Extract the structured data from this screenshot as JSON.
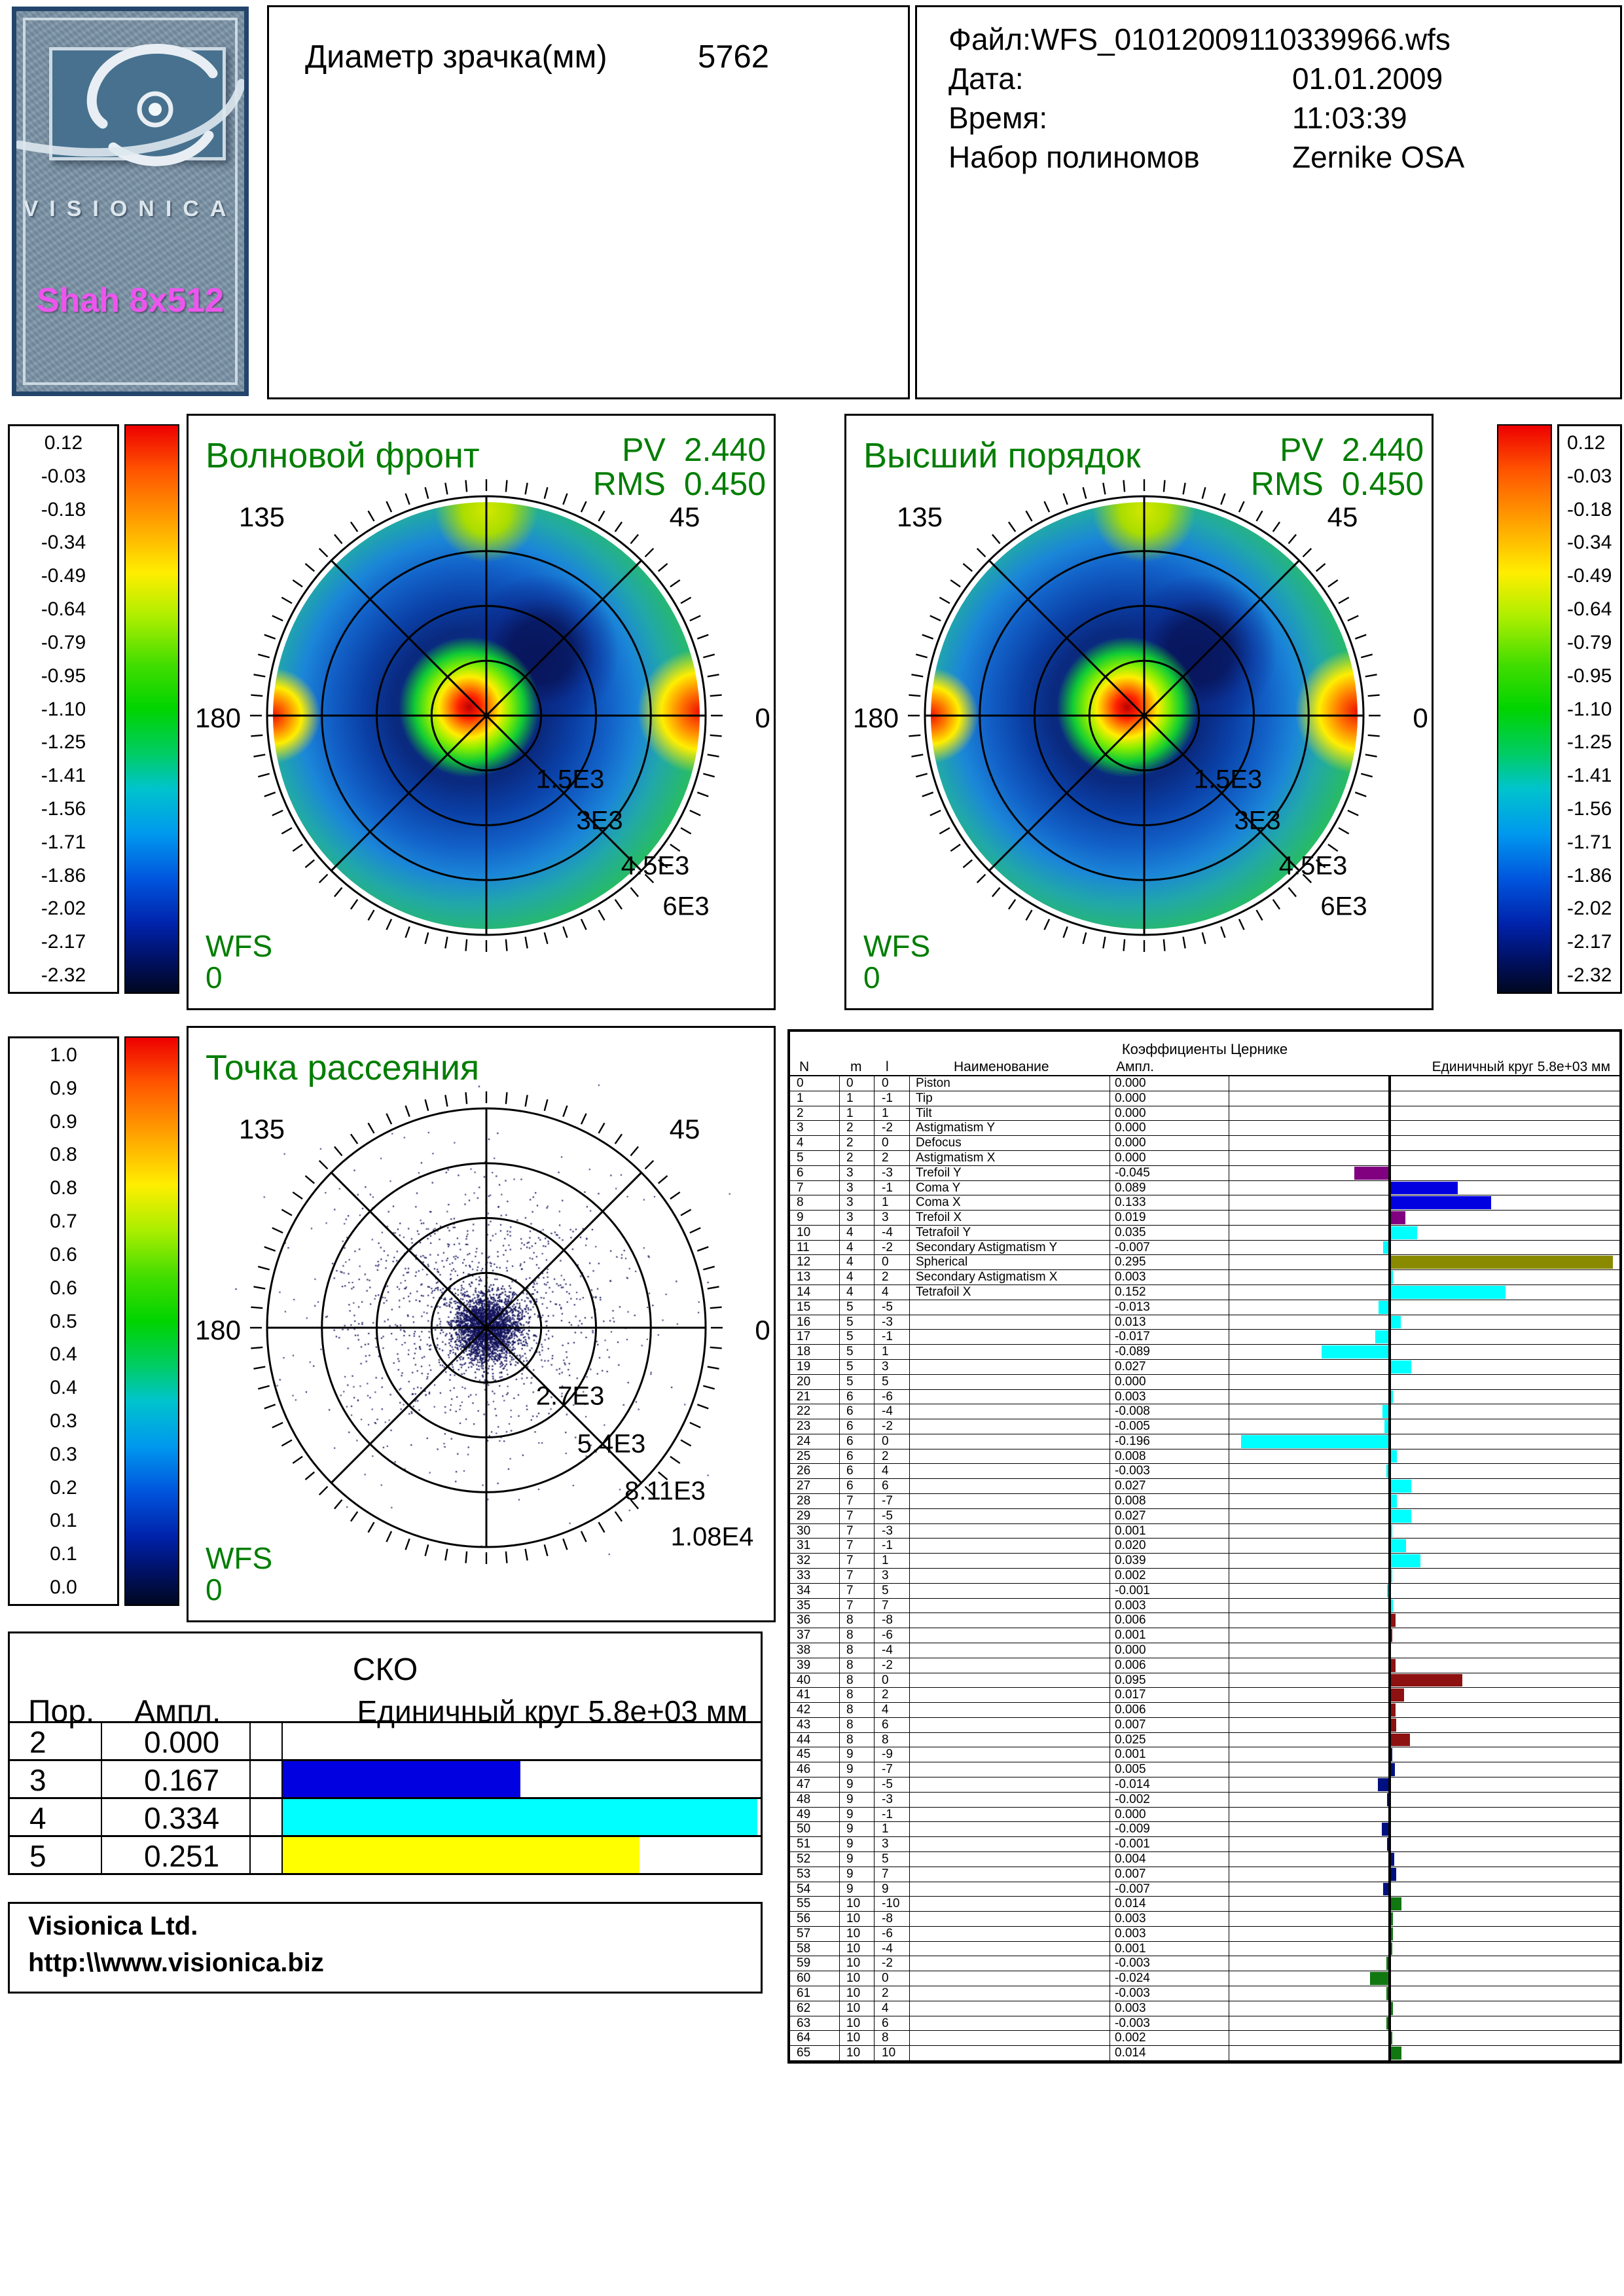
{
  "logo": {
    "brand": "VISIONICA",
    "model": "Shah 8x512",
    "bg": "#7b93a6",
    "panel": "#47718f",
    "model_color": "#ee55ee"
  },
  "pupil": {
    "label": "Диаметр зрачка(мм)",
    "value": "5762"
  },
  "file_info": {
    "lines": [
      {
        "label": "Файл:",
        "value": "WFS_01012009110339966.wfs"
      },
      {
        "label": "Дата:",
        "value": "01.01.2009"
      },
      {
        "label": "Время:",
        "value": "11:03:39"
      },
      {
        "label": "Набор полиномов",
        "value": "Zernike OSA"
      }
    ]
  },
  "colors": {
    "accent_green": "#007d00",
    "scale_top": "#ee0000",
    "scale_bottom": "#000820"
  },
  "wavefront": {
    "title": "Волновой фронт",
    "pv_label": "PV",
    "pv_value": "2.440",
    "rms_label": "RMS",
    "rms_value": "0.450",
    "wfs_label": "WFS",
    "wfs_value": "0",
    "angle_labels": [
      "135",
      "45",
      "180",
      "0"
    ],
    "ring_labels": [
      "1.5E3",
      "3E3",
      "4.5E3",
      "6E3"
    ],
    "scale_ticks": [
      "0.12",
      "-0.03",
      "-0.18",
      "-0.34",
      "-0.49",
      "-0.64",
      "-0.79",
      "-0.95",
      "-1.10",
      "-1.25",
      "-1.41",
      "-1.56",
      "-1.71",
      "-1.86",
      "-2.02",
      "-2.17",
      "-2.32"
    ]
  },
  "higher_order": {
    "title": "Высший порядок",
    "pv_label": "PV",
    "pv_value": "2.440",
    "rms_label": "RMS",
    "rms_value": "0.450",
    "wfs_label": "WFS",
    "wfs_value": "0",
    "angle_labels": [
      "135",
      "45",
      "180",
      "0"
    ],
    "ring_labels": [
      "1.5E3",
      "3E3",
      "4.5E3",
      "6E3"
    ],
    "scale_ticks": [
      "0.12",
      "-0.03",
      "-0.18",
      "-0.34",
      "-0.49",
      "-0.64",
      "-0.79",
      "-0.95",
      "-1.10",
      "-1.25",
      "-1.41",
      "-1.56",
      "-1.71",
      "-1.86",
      "-2.02",
      "-2.17",
      "-2.32"
    ]
  },
  "scatter": {
    "title": "Точка рассеяния",
    "wfs_label": "WFS",
    "wfs_value": "0",
    "angle_labels": [
      "135",
      "45",
      "180",
      "0"
    ],
    "ring_labels": [
      "2.7E3",
      "5.4E3",
      "8.11E3",
      "1.08E4"
    ],
    "scale_ticks": [
      "1.0",
      "0.9",
      "0.9",
      "0.8",
      "0.8",
      "0.7",
      "0.6",
      "0.6",
      "0.5",
      "0.4",
      "0.4",
      "0.3",
      "0.3",
      "0.2",
      "0.1",
      "0.1",
      "0.0"
    ]
  },
  "zernike": {
    "title": "Коэффициенты Цернике",
    "columns": [
      "N",
      "m",
      "l",
      "Наименование",
      "Ампл."
    ],
    "unit_label": "Единичный круг 5.8e+03 мм",
    "rows": [
      {
        "n": 0,
        "m": 0,
        "l": 0,
        "name": "Piston",
        "amp": "0.000",
        "color": ""
      },
      {
        "n": 1,
        "m": 1,
        "l": -1,
        "name": "Tip",
        "amp": "0.000",
        "color": ""
      },
      {
        "n": 2,
        "m": 1,
        "l": 1,
        "name": "Tilt",
        "amp": "0.000",
        "color": ""
      },
      {
        "n": 3,
        "m": 2,
        "l": -2,
        "name": "Astigmatism Y",
        "amp": "0.000",
        "color": ""
      },
      {
        "n": 4,
        "m": 2,
        "l": 0,
        "name": "Defocus",
        "amp": "0.000",
        "color": ""
      },
      {
        "n": 5,
        "m": 2,
        "l": 2,
        "name": "Astigmatism X",
        "amp": "0.000",
        "color": ""
      },
      {
        "n": 6,
        "m": 3,
        "l": -3,
        "name": "Trefoil Y",
        "amp": "-0.045",
        "color": "#800080"
      },
      {
        "n": 7,
        "m": 3,
        "l": -1,
        "name": "Coma Y",
        "amp": "0.089",
        "color": "#0000e0"
      },
      {
        "n": 8,
        "m": 3,
        "l": 1,
        "name": "Coma X",
        "amp": "0.133",
        "color": "#0000e0"
      },
      {
        "n": 9,
        "m": 3,
        "l": 3,
        "name": "Trefoil X",
        "amp": "0.019",
        "color": "#800080"
      },
      {
        "n": 10,
        "m": 4,
        "l": -4,
        "name": "Tetrafoil Y",
        "amp": "0.035",
        "color": "#00ffff"
      },
      {
        "n": 11,
        "m": 4,
        "l": -2,
        "name": "Secondary Astigmatism Y",
        "amp": "-0.007",
        "color": "#00ffff"
      },
      {
        "n": 12,
        "m": 4,
        "l": 0,
        "name": "Spherical",
        "amp": "0.295",
        "color": "#8a8a00"
      },
      {
        "n": 13,
        "m": 4,
        "l": 2,
        "name": "Secondary Astigmatism X",
        "amp": "0.003",
        "color": "#00ffff"
      },
      {
        "n": 14,
        "m": 4,
        "l": 4,
        "name": "Tetrafoil X",
        "amp": "0.152",
        "color": "#00ffff"
      },
      {
        "n": 15,
        "m": 5,
        "l": -5,
        "name": "",
        "amp": "-0.013",
        "color": "#00ffff"
      },
      {
        "n": 16,
        "m": 5,
        "l": -3,
        "name": "",
        "amp": "0.013",
        "color": "#00ffff"
      },
      {
        "n": 17,
        "m": 5,
        "l": -1,
        "name": "",
        "amp": "-0.017",
        "color": "#00ffff"
      },
      {
        "n": 18,
        "m": 5,
        "l": 1,
        "name": "",
        "amp": "-0.089",
        "color": "#00ffff"
      },
      {
        "n": 19,
        "m": 5,
        "l": 3,
        "name": "",
        "amp": "0.027",
        "color": "#00ffff"
      },
      {
        "n": 20,
        "m": 5,
        "l": 5,
        "name": "",
        "amp": "0.000",
        "color": "#00ffff"
      },
      {
        "n": 21,
        "m": 6,
        "l": -6,
        "name": "",
        "amp": "0.003",
        "color": "#00ffff"
      },
      {
        "n": 22,
        "m": 6,
        "l": -4,
        "name": "",
        "amp": "-0.008",
        "color": "#00ffff"
      },
      {
        "n": 23,
        "m": 6,
        "l": -2,
        "name": "",
        "amp": "-0.005",
        "color": "#00ffff"
      },
      {
        "n": 24,
        "m": 6,
        "l": 0,
        "name": "",
        "amp": "-0.196",
        "color": "#00ffff"
      },
      {
        "n": 25,
        "m": 6,
        "l": 2,
        "name": "",
        "amp": "0.008",
        "color": "#00ffff"
      },
      {
        "n": 26,
        "m": 6,
        "l": 4,
        "name": "",
        "amp": "-0.003",
        "color": "#00ffff"
      },
      {
        "n": 27,
        "m": 6,
        "l": 6,
        "name": "",
        "amp": "0.027",
        "color": "#00ffff"
      },
      {
        "n": 28,
        "m": 7,
        "l": -7,
        "name": "",
        "amp": "0.008",
        "color": "#00ffff"
      },
      {
        "n": 29,
        "m": 7,
        "l": -5,
        "name": "",
        "amp": "0.027",
        "color": "#00ffff"
      },
      {
        "n": 30,
        "m": 7,
        "l": -3,
        "name": "",
        "amp": "0.001",
        "color": "#00ffff"
      },
      {
        "n": 31,
        "m": 7,
        "l": -1,
        "name": "",
        "amp": "0.020",
        "color": "#00ffff"
      },
      {
        "n": 32,
        "m": 7,
        "l": 1,
        "name": "",
        "amp": "0.039",
        "color": "#00ffff"
      },
      {
        "n": 33,
        "m": 7,
        "l": 3,
        "name": "",
        "amp": "0.002",
        "color": "#00ffff"
      },
      {
        "n": 34,
        "m": 7,
        "l": 5,
        "name": "",
        "amp": "-0.001",
        "color": "#00ffff"
      },
      {
        "n": 35,
        "m": 7,
        "l": 7,
        "name": "",
        "amp": "0.003",
        "color": "#00ffff"
      },
      {
        "n": 36,
        "m": 8,
        "l": -8,
        "name": "",
        "amp": "0.006",
        "color": "#8e1111"
      },
      {
        "n": 37,
        "m": 8,
        "l": -6,
        "name": "",
        "amp": "0.001",
        "color": "#8e1111"
      },
      {
        "n": 38,
        "m": 8,
        "l": -4,
        "name": "",
        "amp": "0.000",
        "color": "#8e1111"
      },
      {
        "n": 39,
        "m": 8,
        "l": -2,
        "name": "",
        "amp": "0.006",
        "color": "#8e1111"
      },
      {
        "n": 40,
        "m": 8,
        "l": 0,
        "name": "",
        "amp": "0.095",
        "color": "#8e1111"
      },
      {
        "n": 41,
        "m": 8,
        "l": 2,
        "name": "",
        "amp": "0.017",
        "color": "#8e1111"
      },
      {
        "n": 42,
        "m": 8,
        "l": 4,
        "name": "",
        "amp": "0.006",
        "color": "#8e1111"
      },
      {
        "n": 43,
        "m": 8,
        "l": 6,
        "name": "",
        "amp": "0.007",
        "color": "#8e1111"
      },
      {
        "n": 44,
        "m": 8,
        "l": 8,
        "name": "",
        "amp": "0.025",
        "color": "#8e1111"
      },
      {
        "n": 45,
        "m": 9,
        "l": -9,
        "name": "",
        "amp": "0.001",
        "color": "#001080"
      },
      {
        "n": 46,
        "m": 9,
        "l": -7,
        "name": "",
        "amp": "0.005",
        "color": "#001080"
      },
      {
        "n": 47,
        "m": 9,
        "l": -5,
        "name": "",
        "amp": "-0.014",
        "color": "#001080"
      },
      {
        "n": 48,
        "m": 9,
        "l": -3,
        "name": "",
        "amp": "-0.002",
        "color": "#001080"
      },
      {
        "n": 49,
        "m": 9,
        "l": -1,
        "name": "",
        "amp": "0.000",
        "color": "#001080"
      },
      {
        "n": 50,
        "m": 9,
        "l": 1,
        "name": "",
        "amp": "-0.009",
        "color": "#001080"
      },
      {
        "n": 51,
        "m": 9,
        "l": 3,
        "name": "",
        "amp": "-0.001",
        "color": "#001080"
      },
      {
        "n": 52,
        "m": 9,
        "l": 5,
        "name": "",
        "amp": "0.004",
        "color": "#001080"
      },
      {
        "n": 53,
        "m": 9,
        "l": 7,
        "name": "",
        "amp": "0.007",
        "color": "#001080"
      },
      {
        "n": 54,
        "m": 9,
        "l": 9,
        "name": "",
        "amp": "-0.007",
        "color": "#001080"
      },
      {
        "n": 55,
        "m": 10,
        "l": -10,
        "name": "",
        "amp": "0.014",
        "color": "#117711"
      },
      {
        "n": 56,
        "m": 10,
        "l": -8,
        "name": "",
        "amp": "0.003",
        "color": "#117711"
      },
      {
        "n": 57,
        "m": 10,
        "l": -6,
        "name": "",
        "amp": "0.003",
        "color": "#117711"
      },
      {
        "n": 58,
        "m": 10,
        "l": -4,
        "name": "",
        "amp": "0.001",
        "color": "#117711"
      },
      {
        "n": 59,
        "m": 10,
        "l": -2,
        "name": "",
        "amp": "-0.003",
        "color": "#117711"
      },
      {
        "n": 60,
        "m": 10,
        "l": 0,
        "name": "",
        "amp": "-0.024",
        "color": "#117711"
      },
      {
        "n": 61,
        "m": 10,
        "l": 2,
        "name": "",
        "amp": "-0.003",
        "color": "#117711"
      },
      {
        "n": 62,
        "m": 10,
        "l": 4,
        "name": "",
        "amp": "0.003",
        "color": "#117711"
      },
      {
        "n": 63,
        "m": 10,
        "l": 6,
        "name": "",
        "amp": "-0.003",
        "color": "#117711"
      },
      {
        "n": 64,
        "m": 10,
        "l": 8,
        "name": "",
        "amp": "0.002",
        "color": "#117711"
      },
      {
        "n": 65,
        "m": 10,
        "l": 10,
        "name": "",
        "amp": "0.014",
        "color": "#117711"
      }
    ]
  },
  "sko": {
    "title": "СКО",
    "col_por": "Пор.",
    "col_ampl": "Ампл.",
    "unit_label": "Единичный круг 5.8e+03 мм",
    "rows": [
      {
        "por": "2",
        "ampl": "0.000",
        "color": "#0000e0"
      },
      {
        "por": "3",
        "ampl": "0.167",
        "color": "#0000e0"
      },
      {
        "por": "4",
        "ampl": "0.334",
        "color": "#00ffff"
      },
      {
        "por": "5",
        "ampl": "0.251",
        "color": "#ffff00"
      }
    ],
    "bar_max": 0.334
  },
  "footer": {
    "company": "Visionica Ltd.",
    "url": "http:\\\\www.visionica.biz"
  }
}
